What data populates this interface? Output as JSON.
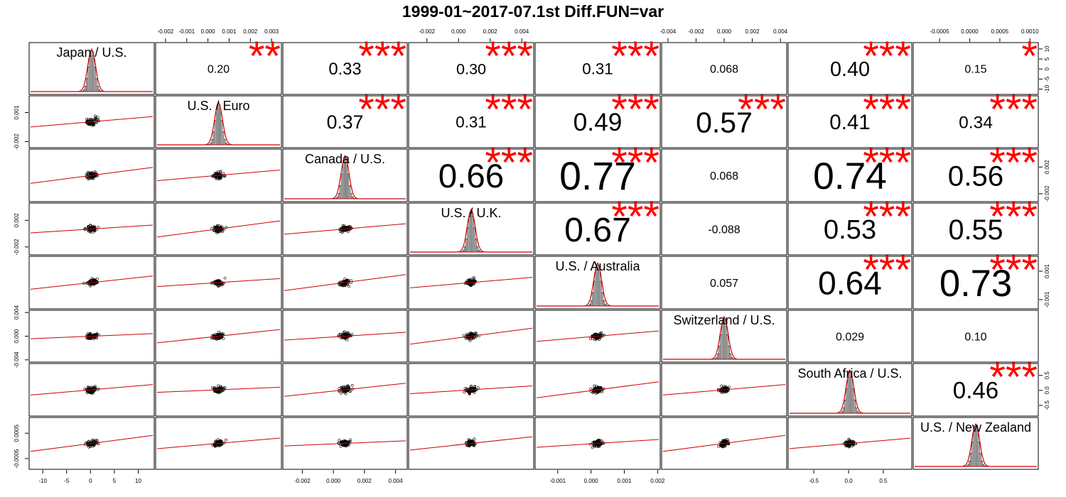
{
  "title": "1999-01~2017-07.1st Diff.FUN=var",
  "chart_data": {
    "type": "scatter-matrix",
    "title": "1999-01~2017-07.1st Diff.FUN=var",
    "variables": [
      "Japan / U.S.",
      "U.S. / Euro",
      "Canada / U.S.",
      "U.S. / U.K.",
      "U.S. / Australia",
      "Switzerland / U.S.",
      "South Africa / U.S.",
      "U.S. / New Zealand"
    ],
    "correlations": [
      {
        "row": 0,
        "col": 1,
        "value": 0.2,
        "label": "0.20",
        "stars": "**"
      },
      {
        "row": 0,
        "col": 2,
        "value": 0.33,
        "label": "0.33",
        "stars": "***"
      },
      {
        "row": 0,
        "col": 3,
        "value": 0.3,
        "label": "0.30",
        "stars": "***"
      },
      {
        "row": 0,
        "col": 4,
        "value": 0.31,
        "label": "0.31",
        "stars": "***"
      },
      {
        "row": 0,
        "col": 5,
        "value": 0.068,
        "label": "0.068",
        "stars": ""
      },
      {
        "row": 0,
        "col": 6,
        "value": 0.4,
        "label": "0.40",
        "stars": "***"
      },
      {
        "row": 0,
        "col": 7,
        "value": 0.15,
        "label": "0.15",
        "stars": "*"
      },
      {
        "row": 1,
        "col": 2,
        "value": 0.37,
        "label": "0.37",
        "stars": "***"
      },
      {
        "row": 1,
        "col": 3,
        "value": 0.31,
        "label": "0.31",
        "stars": "***"
      },
      {
        "row": 1,
        "col": 4,
        "value": 0.49,
        "label": "0.49",
        "stars": "***"
      },
      {
        "row": 1,
        "col": 5,
        "value": 0.57,
        "label": "0.57",
        "stars": "***"
      },
      {
        "row": 1,
        "col": 6,
        "value": 0.41,
        "label": "0.41",
        "stars": "***"
      },
      {
        "row": 1,
        "col": 7,
        "value": 0.34,
        "label": "0.34",
        "stars": "***"
      },
      {
        "row": 2,
        "col": 3,
        "value": 0.66,
        "label": "0.66",
        "stars": "***"
      },
      {
        "row": 2,
        "col": 4,
        "value": 0.77,
        "label": "0.77",
        "stars": "***"
      },
      {
        "row": 2,
        "col": 5,
        "value": 0.068,
        "label": "0.068",
        "stars": ""
      },
      {
        "row": 2,
        "col": 6,
        "value": 0.74,
        "label": "0.74",
        "stars": "***"
      },
      {
        "row": 2,
        "col": 7,
        "value": 0.56,
        "label": "0.56",
        "stars": "***"
      },
      {
        "row": 3,
        "col": 4,
        "value": 0.67,
        "label": "0.67",
        "stars": "***"
      },
      {
        "row": 3,
        "col": 5,
        "value": -0.088,
        "label": "-0.088",
        "stars": ""
      },
      {
        "row": 3,
        "col": 6,
        "value": 0.53,
        "label": "0.53",
        "stars": "***"
      },
      {
        "row": 3,
        "col": 7,
        "value": 0.55,
        "label": "0.55",
        "stars": "***"
      },
      {
        "row": 4,
        "col": 5,
        "value": 0.057,
        "label": "0.057",
        "stars": ""
      },
      {
        "row": 4,
        "col": 6,
        "value": 0.64,
        "label": "0.64",
        "stars": "***"
      },
      {
        "row": 4,
        "col": 7,
        "value": 0.73,
        "label": "0.73",
        "stars": "***"
      },
      {
        "row": 5,
        "col": 6,
        "value": 0.029,
        "label": "0.029",
        "stars": ""
      },
      {
        "row": 5,
        "col": 7,
        "value": 0.1,
        "label": "0.10",
        "stars": ""
      },
      {
        "row": 6,
        "col": 7,
        "value": 0.46,
        "label": "0.46",
        "stars": "***"
      }
    ],
    "axis_ticks": {
      "top": [
        {
          "col": 1,
          "ticks": [
            "-0.002",
            "-0.001",
            "0.000",
            "0.001",
            "0.002",
            "0.003"
          ],
          "range": [
            -0.0025,
            0.0035
          ]
        },
        {
          "col": 3,
          "ticks": [
            "-0.002",
            "0.000",
            "0.002",
            "0.004"
          ],
          "range": [
            -0.0032,
            0.0048
          ]
        },
        {
          "col": 5,
          "ticks": [
            "-0.004",
            "-0.002",
            "0.000",
            "0.002",
            "0.004"
          ],
          "range": [
            -0.0045,
            0.0045
          ]
        },
        {
          "col": 7,
          "ticks": [
            "-0.0005",
            "0.0000",
            "0.0005",
            "0.0010"
          ],
          "range": [
            -0.00095,
            0.00115
          ]
        }
      ],
      "bottom": [
        {
          "col": 0,
          "ticks": [
            "-10",
            "-5",
            "0",
            "5",
            "10"
          ],
          "range": [
            -13,
            13.5
          ]
        },
        {
          "col": 2,
          "ticks": [
            "-0.002",
            "0.000",
            "0.002",
            "0.004"
          ],
          "range": [
            -0.0033,
            0.0048
          ]
        },
        {
          "col": 4,
          "ticks": [
            "-0.001",
            "0.000",
            "0.001",
            "0.002"
          ],
          "range": [
            -0.0017,
            0.0021
          ]
        },
        {
          "col": 6,
          "ticks": [
            "-0.5",
            "0.0",
            "0.5"
          ],
          "range": [
            -0.88,
            0.92
          ]
        }
      ],
      "left": [
        {
          "row": 1,
          "ticks": [
            "-0.002",
            "0.001"
          ],
          "range": [
            -0.0027,
            0.0028
          ]
        },
        {
          "row": 3,
          "ticks": [
            "-0.002",
            "0.002"
          ],
          "range": [
            -0.0033,
            0.0047
          ]
        },
        {
          "row": 5,
          "ticks": [
            "-0.004",
            "0.000",
            "0.004"
          ],
          "range": [
            -0.0045,
            0.0045
          ]
        },
        {
          "row": 7,
          "ticks": [
            "-0.0005",
            "0.0005"
          ],
          "range": [
            -0.00095,
            0.00115
          ]
        }
      ],
      "right": [
        {
          "row": 0,
          "ticks": [
            "-10",
            "-5",
            "0",
            "5",
            "10"
          ],
          "range": [
            -13,
            13.5
          ]
        },
        {
          "row": 2,
          "ticks": [
            "-0.002",
            "0.002"
          ],
          "range": [
            -0.0033,
            0.0048
          ]
        },
        {
          "row": 4,
          "ticks": [
            "-0.001",
            "0.001"
          ],
          "range": [
            -0.0017,
            0.0021
          ]
        },
        {
          "row": 6,
          "ticks": [
            "-0.5",
            "0.0",
            "0.5"
          ],
          "range": [
            -0.88,
            0.92
          ]
        }
      ]
    },
    "colors": {
      "stars": "#ff0000",
      "smooth_line": "#cc0000",
      "density": "#cc0000",
      "points": "#000000",
      "bars": "#d9d9d9"
    }
  }
}
